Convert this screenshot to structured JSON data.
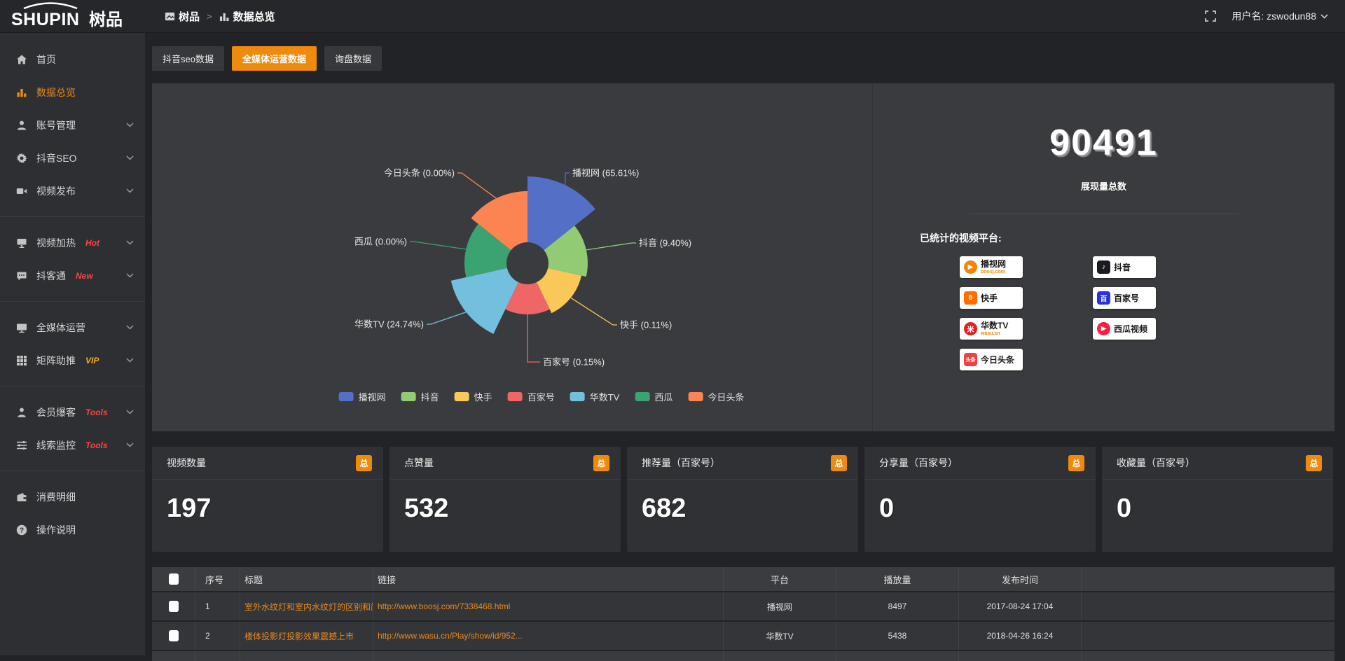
{
  "header": {
    "logo_en": "SHUPIN",
    "logo_cn": "树品",
    "breadcrumb": {
      "root": "树品",
      "separator": ">",
      "current": "数据总览"
    },
    "user_label": "用户名:",
    "user_name": "zswodun88"
  },
  "sidebar": {
    "items": [
      {
        "label": "首页",
        "icon": "home-icon",
        "active": false,
        "expandable": false,
        "tag": ""
      },
      {
        "label": "数据总览",
        "icon": "bar-chart-icon",
        "active": true,
        "expandable": false,
        "tag": ""
      },
      {
        "label": "账号管理",
        "icon": "user-icon",
        "active": false,
        "expandable": true,
        "tag": ""
      },
      {
        "label": "抖音SEO",
        "icon": "gear-icon",
        "active": false,
        "expandable": true,
        "tag": ""
      },
      {
        "label": "视频发布",
        "icon": "video-icon",
        "active": false,
        "expandable": true,
        "tag": ""
      },
      {
        "divider": true
      },
      {
        "label": "视频加热",
        "icon": "heat-screen-icon",
        "active": false,
        "expandable": true,
        "tag": "Hot",
        "tag_color": "#ff4343"
      },
      {
        "label": "抖客通",
        "icon": "chat-icon",
        "active": false,
        "expandable": true,
        "tag": "New",
        "tag_color": "#ff4343"
      },
      {
        "divider": true
      },
      {
        "label": "全媒体运营",
        "icon": "monitor-icon",
        "active": false,
        "expandable": true,
        "tag": ""
      },
      {
        "label": "矩阵助推",
        "icon": "grid-icon",
        "active": false,
        "expandable": true,
        "tag": "VIP",
        "tag_color": "#efaf1d"
      },
      {
        "divider": true
      },
      {
        "label": "会员爆客",
        "icon": "person-icon",
        "active": false,
        "expandable": true,
        "tag": "Tools",
        "tag_color": "#ff4343"
      },
      {
        "label": "线索监控",
        "icon": "sliders-icon",
        "active": false,
        "expandable": true,
        "tag": "Tools",
        "tag_color": "#ff4343"
      },
      {
        "divider": true
      },
      {
        "label": "消费明细",
        "icon": "wallet-icon",
        "active": false,
        "expandable": false,
        "tag": ""
      },
      {
        "label": "操作说明",
        "icon": "question-icon",
        "active": false,
        "expandable": false,
        "tag": ""
      }
    ]
  },
  "tabs": [
    {
      "label": "抖音seo数据",
      "active": false
    },
    {
      "label": "全媒体运营数据",
      "active": true
    },
    {
      "label": "询盘数据",
      "active": false
    }
  ],
  "chart_data": {
    "type": "pie",
    "subtype": "nightingale-rose",
    "legend_position": "bottom",
    "items": [
      {
        "name": "播视网",
        "percent": 65.61,
        "label": "播视网 (65.61%)",
        "color": "#5470c6"
      },
      {
        "name": "抖音",
        "percent": 9.4,
        "label": "抖音 (9.40%)",
        "color": "#91cc75"
      },
      {
        "name": "快手",
        "percent": 0.11,
        "label": "快手 (0.11%)",
        "color": "#fac858"
      },
      {
        "name": "百家号",
        "percent": 0.15,
        "label": "百家号 (0.15%)",
        "color": "#ee6666"
      },
      {
        "name": "华数TV",
        "percent": 24.74,
        "label": "华数TV (24.74%)",
        "color": "#73c0de"
      },
      {
        "name": "西瓜",
        "percent": 0.0,
        "label": "西瓜 (0.00%)",
        "color": "#3ba272"
      },
      {
        "name": "今日头条",
        "percent": 0.0,
        "label": "今日头条 (0.00%)",
        "color": "#fc8452"
      }
    ],
    "legend": [
      "播视网",
      "抖音",
      "快手",
      "百家号",
      "华数TV",
      "西瓜",
      "今日头条"
    ]
  },
  "summary": {
    "total": "90491",
    "total_label": "展现量总数",
    "platforms_label": "已统计的视频平台:",
    "platform_badges": [
      {
        "name": "播视网",
        "sub": "boosj.com",
        "style": "boosj"
      },
      {
        "name": "抖音",
        "sub": "",
        "style": "douyin"
      },
      {
        "name": "快手",
        "sub": "",
        "style": "kuaishou"
      },
      {
        "name": "百家号",
        "sub": "",
        "style": "baijia"
      },
      {
        "name": "华数TV",
        "sub": "wasu.cn",
        "style": "wasu"
      },
      {
        "name": "西瓜视频",
        "sub": "",
        "style": "xigua"
      },
      {
        "name": "今日头条",
        "sub": "",
        "style": "toutiao"
      }
    ]
  },
  "stat_cards": {
    "badge": "总",
    "cards": [
      {
        "title": "视频数量",
        "value": "197"
      },
      {
        "title": "点赞量",
        "value": "532"
      },
      {
        "title": "推荐量（百家号）",
        "value": "682"
      },
      {
        "title": "分享量（百家号）",
        "value": "0"
      },
      {
        "title": "收藏量（百家号）",
        "value": "0"
      }
    ]
  },
  "table": {
    "headers": [
      "序号",
      "标题",
      "链接",
      "平台",
      "播放量",
      "发布时间"
    ],
    "rows": [
      {
        "num": "1",
        "title": "室外水纹灯和室内水纹灯的区别和简介",
        "link": "http://www.boosj.com/7338468.html",
        "platform": "播视网",
        "plays": "8497",
        "time": "2017-08-24 17:04"
      },
      {
        "num": "2",
        "title": "楼体投影灯投影效果震撼上市",
        "link": "http://www.wasu.cn/Play/show/id/952...",
        "platform": "华数TV",
        "plays": "5438",
        "time": "2018-04-26 16:24"
      }
    ]
  }
}
